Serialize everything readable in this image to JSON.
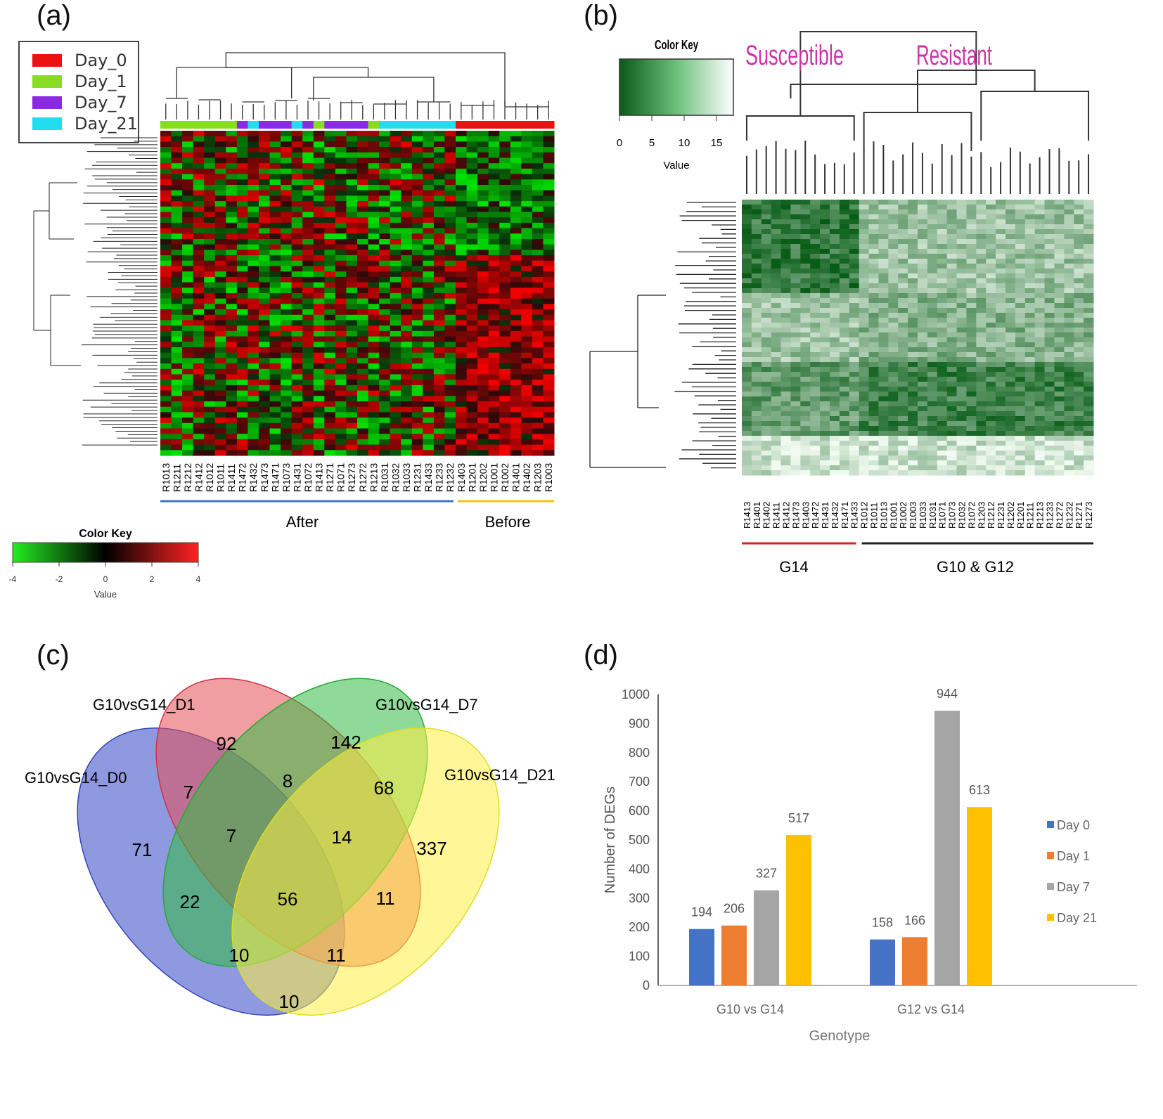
{
  "panels": {
    "a": "(a)",
    "b": "(b)",
    "c": "(c)",
    "d": "(d)"
  },
  "panel_a": {
    "legend": [
      {
        "label": "Day_0",
        "color": "#ee1111"
      },
      {
        "label": "Day_1",
        "color": "#88dd22"
      },
      {
        "label": "Day_7",
        "color": "#8a2be2"
      },
      {
        "label": "Day_21",
        "color": "#22ddee"
      }
    ],
    "samples": [
      "R1013",
      "R1211",
      "R1212",
      "R1412",
      "R1012",
      "R1011",
      "R1411",
      "R1472",
      "R1432",
      "R1473",
      "R1471",
      "R1073",
      "R1431",
      "R1072",
      "R1413",
      "R1271",
      "R1071",
      "R1273",
      "R1272",
      "R1213",
      "R1031",
      "R1032",
      "R1033",
      "R1231",
      "R1433",
      "R1233",
      "R1232",
      "R1403",
      "R1201",
      "R1202",
      "R1001",
      "R1002",
      "R1401",
      "R1402",
      "R1203",
      "R1003"
    ],
    "group_after": "After",
    "group_before": "Before",
    "color_key_title": "Color Key",
    "color_key_label": "Value",
    "color_key_ticks": [
      "-4",
      "-2",
      "0",
      "2",
      "4"
    ]
  },
  "panel_b": {
    "color_key_title": "Color Key",
    "color_key_label": "Value",
    "color_key_ticks": [
      "0",
      "5",
      "10",
      "15"
    ],
    "cluster_left": "Susceptible",
    "cluster_right": "Resistant",
    "samples": [
      "R1413",
      "R1401",
      "R1402",
      "R1411",
      "R1412",
      "R1473",
      "R1403",
      "R1472",
      "R1431",
      "R1432",
      "R1471",
      "R1433",
      "R1012",
      "R1011",
      "R1013",
      "R1001",
      "R1002",
      "R1003",
      "R1033",
      "R1031",
      "R1071",
      "R1073",
      "R1032",
      "R1072",
      "R1203",
      "R1212",
      "R1231",
      "R1202",
      "R1201",
      "R1211",
      "R1213",
      "R1233",
      "R1272",
      "R1232",
      "R1271",
      "R1273"
    ],
    "group_left": "G14",
    "group_right": "G10 & G12"
  },
  "panel_c": {
    "set_labels": [
      "G10vsG14_D0",
      "G10vsG14_D1",
      "G10vsG14_D7",
      "G10vsG14_D21"
    ],
    "region_counts": [
      "92",
      "142",
      "71",
      "337",
      "7",
      "8",
      "68",
      "7",
      "14",
      "22",
      "56",
      "11",
      "10",
      "11",
      "10"
    ]
  },
  "chart_data": {
    "type": "bar",
    "title": "",
    "xlabel": "Genotype",
    "ylabel": "Number of DEGs",
    "categories": [
      "G10 vs G14",
      "G12 vs G14"
    ],
    "series": [
      {
        "name": "Day 0",
        "color": "#4472c4",
        "values": [
          194,
          158
        ]
      },
      {
        "name": "Day 1",
        "color": "#ed7d31",
        "values": [
          206,
          166
        ]
      },
      {
        "name": "Day 7",
        "color": "#a5a5a5",
        "values": [
          327,
          944
        ]
      },
      {
        "name": "Day 21",
        "color": "#ffc000",
        "values": [
          517,
          613
        ]
      }
    ],
    "ylim": [
      0,
      1000
    ],
    "yticks": [
      0,
      100,
      200,
      300,
      400,
      500,
      600,
      700,
      800,
      900,
      1000
    ],
    "grid": false,
    "legend": "right"
  }
}
